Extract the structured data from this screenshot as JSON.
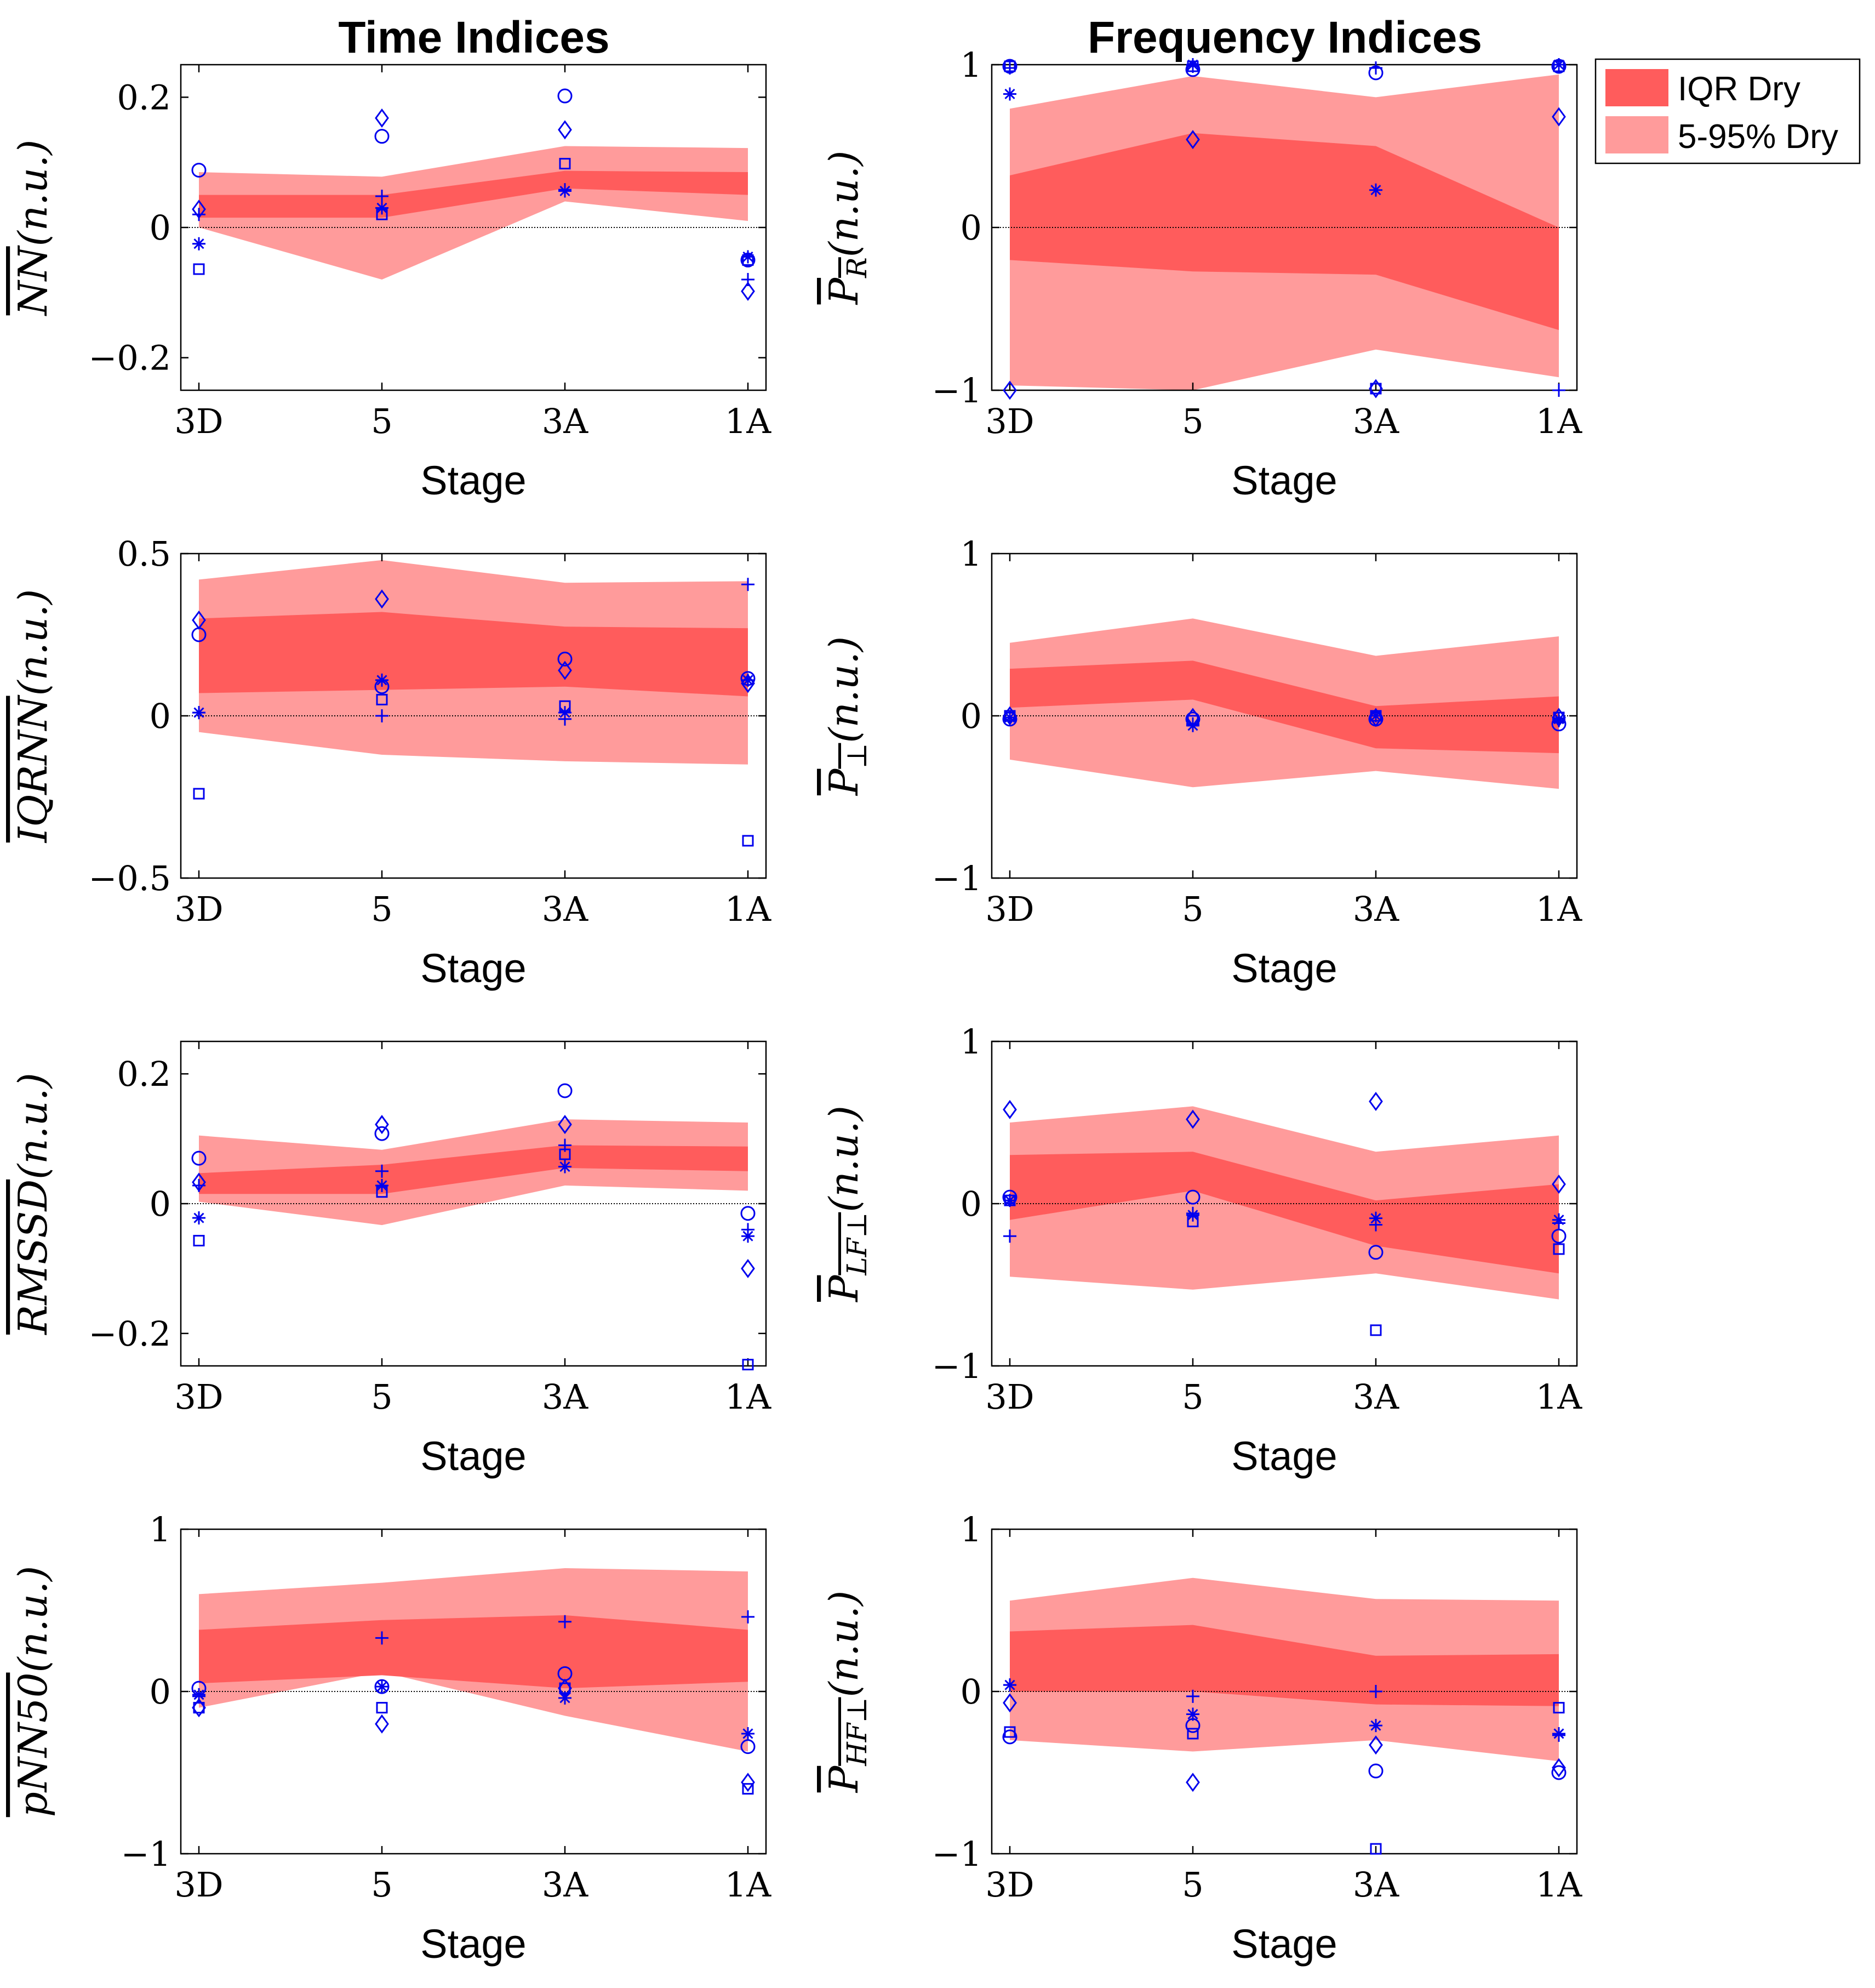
{
  "figure": {
    "col_titles": [
      "Time Indices",
      "Frequency Indices"
    ],
    "legend": [
      {
        "label": "IQR Dry",
        "color": "#ff5c5c"
      },
      {
        "label": "5-95% Dry",
        "color": "#ff9b9b"
      }
    ],
    "colors": {
      "iqr": "#ff5c5c",
      "p595": "#ff9b9b",
      "markers": "#0000ee",
      "axes": "#000000"
    },
    "marker_symbols": [
      "circle",
      "diamond",
      "square",
      "asterisk",
      "plus"
    ]
  },
  "chart_data": [
    {
      "type": "area",
      "title": "Time Indices",
      "ylabel": "NN",
      "ylabel_suffix": "(n.u.)",
      "xlabel": "Stage",
      "categories": [
        "3D",
        "5",
        "3A",
        "1A"
      ],
      "ylim": [
        -0.25,
        0.25
      ],
      "yticks": [
        -0.2,
        0,
        0.2
      ],
      "ytick_labels": [
        "−0.2",
        "0",
        "0.2"
      ],
      "band_595": {
        "lower": [
          0.0,
          -0.08,
          0.04,
          0.01
        ],
        "upper": [
          0.085,
          0.078,
          0.125,
          0.122
        ]
      },
      "band_iqr": {
        "lower": [
          0.015,
          0.015,
          0.06,
          0.05
        ],
        "upper": [
          0.05,
          0.05,
          0.087,
          0.085
        ]
      },
      "markers": {
        "circle": [
          0.088,
          0.14,
          0.202,
          -0.05
        ],
        "diamond": [
          0.028,
          0.168,
          0.15,
          -0.098
        ],
        "square": [
          -0.064,
          0.02,
          0.098,
          -0.05
        ],
        "asterisk": [
          -0.025,
          0.03,
          0.056,
          -0.045
        ],
        "plus": [
          0.02,
          0.048,
          0.058,
          -0.08
        ]
      }
    },
    {
      "type": "area",
      "title": "Frequency Indices",
      "ylabel": "P_R",
      "ylabel_suffix": "(n.u.)",
      "xlabel": "Stage",
      "categories": [
        "3D",
        "5",
        "3A",
        "1A"
      ],
      "ylim": [
        -1,
        1
      ],
      "yticks": [
        -1,
        0,
        1
      ],
      "ytick_labels": [
        "−1",
        "0",
        "1"
      ],
      "band_595": {
        "lower": [
          -0.97,
          -1.0,
          -0.75,
          -0.92
        ],
        "upper": [
          0.73,
          0.93,
          0.8,
          0.94
        ]
      },
      "band_iqr": {
        "lower": [
          -0.2,
          -0.27,
          -0.29,
          -0.63
        ],
        "upper": [
          0.32,
          0.58,
          0.5,
          0.0
        ]
      },
      "markers": {
        "circle": [
          0.99,
          0.97,
          0.95,
          0.99
        ],
        "diamond": [
          -1.0,
          0.54,
          -0.99,
          0.68
        ],
        "square": [
          0.99,
          0.99,
          -0.99,
          0.99
        ],
        "asterisk": [
          0.82,
          1.0,
          0.23,
          1.0
        ],
        "plus": [
          0.98,
          0.99,
          0.98,
          -1.0
        ]
      }
    },
    {
      "type": "area",
      "ylabel": "IQRNN",
      "ylabel_suffix": "(n.u.)",
      "xlabel": "Stage",
      "categories": [
        "3D",
        "5",
        "3A",
        "1A"
      ],
      "ylim": [
        -0.5,
        0.5
      ],
      "yticks": [
        -0.5,
        0,
        0.5
      ],
      "ytick_labels": [
        "−0.5",
        "0",
        "0.5"
      ],
      "band_595": {
        "lower": [
          -0.05,
          -0.12,
          -0.14,
          -0.15
        ],
        "upper": [
          0.42,
          0.48,
          0.41,
          0.415
        ]
      },
      "band_iqr": {
        "lower": [
          0.07,
          0.08,
          0.09,
          0.06
        ],
        "upper": [
          0.3,
          0.32,
          0.275,
          0.27
        ]
      },
      "markers": {
        "circle": [
          0.25,
          0.09,
          0.175,
          0.115
        ],
        "diamond": [
          0.295,
          0.36,
          0.14,
          0.1
        ],
        "square": [
          -0.24,
          0.05,
          0.03,
          -0.385
        ],
        "asterisk": [
          0.01,
          0.11,
          0.01,
          0.11
        ],
        "plus": [
          0.01,
          0.0,
          -0.01,
          0.405
        ]
      }
    },
    {
      "type": "area",
      "ylabel": "P_⊥",
      "ylabel_suffix": "(n.u.)",
      "xlabel": "Stage",
      "categories": [
        "3D",
        "5",
        "3A",
        "1A"
      ],
      "ylim": [
        -1,
        1
      ],
      "yticks": [
        -1,
        0,
        1
      ],
      "ytick_labels": [
        "−1",
        "0",
        "1"
      ],
      "band_595": {
        "lower": [
          -0.27,
          -0.44,
          -0.34,
          -0.45
        ],
        "upper": [
          0.45,
          0.6,
          0.37,
          0.49
        ]
      },
      "band_iqr": {
        "lower": [
          0.05,
          0.1,
          -0.2,
          -0.23
        ],
        "upper": [
          0.29,
          0.34,
          0.06,
          0.12
        ]
      },
      "markers": {
        "circle": [
          -0.02,
          -0.02,
          -0.02,
          -0.05
        ],
        "diamond": [
          0.0,
          -0.01,
          -0.01,
          -0.01
        ],
        "square": [
          0.0,
          -0.03,
          0.0,
          -0.01
        ],
        "asterisk": [
          -0.01,
          -0.06,
          0.0,
          -0.02
        ],
        "plus": [
          -0.01,
          -0.05,
          0.0,
          -0.03
        ]
      }
    },
    {
      "type": "area",
      "ylabel": "RMSSD",
      "ylabel_suffix": "(n.u.)",
      "xlabel": "Stage",
      "categories": [
        "3D",
        "5",
        "3A",
        "1A"
      ],
      "ylim": [
        -0.25,
        0.25
      ],
      "yticks": [
        -0.2,
        0,
        0.2
      ],
      "ytick_labels": [
        "−0.2",
        "0",
        "0.2"
      ],
      "band_595": {
        "lower": [
          0.003,
          -0.033,
          0.028,
          0.02
        ],
        "upper": [
          0.105,
          0.083,
          0.13,
          0.125
        ]
      },
      "band_iqr": {
        "lower": [
          0.015,
          0.015,
          0.055,
          0.05
        ],
        "upper": [
          0.047,
          0.06,
          0.09,
          0.088
        ]
      },
      "markers": {
        "circle": [
          0.07,
          0.108,
          0.174,
          -0.015
        ],
        "diamond": [
          0.033,
          0.122,
          0.122,
          -0.1
        ],
        "square": [
          -0.057,
          0.018,
          0.076,
          -0.248
        ],
        "asterisk": [
          -0.022,
          0.028,
          0.057,
          -0.05
        ],
        "plus": [
          0.028,
          0.05,
          0.09,
          -0.04
        ]
      }
    },
    {
      "type": "area",
      "ylabel": "P_LF⊥",
      "ylabel_suffix": "(n.u.)",
      "xlabel": "Stage",
      "categories": [
        "3D",
        "5",
        "3A",
        "1A"
      ],
      "ylim": [
        -1,
        1
      ],
      "yticks": [
        -1,
        0,
        1
      ],
      "ytick_labels": [
        "−1",
        "0",
        "1"
      ],
      "band_595": {
        "lower": [
          -0.45,
          -0.53,
          -0.43,
          -0.59
        ],
        "upper": [
          0.5,
          0.6,
          0.32,
          0.42
        ]
      },
      "band_iqr": {
        "lower": [
          -0.1,
          0.08,
          -0.26,
          -0.43
        ],
        "upper": [
          0.3,
          0.32,
          0.02,
          0.12
        ]
      },
      "markers": {
        "circle": [
          0.04,
          0.04,
          -0.3,
          -0.2
        ],
        "diamond": [
          0.58,
          0.52,
          0.63,
          0.12
        ],
        "square": [
          0.02,
          -0.11,
          -0.78,
          -0.28
        ],
        "asterisk": [
          0.02,
          -0.07,
          -0.09,
          -0.1
        ],
        "plus": [
          -0.2,
          -0.06,
          -0.13,
          -0.12
        ]
      }
    },
    {
      "type": "area",
      "ylabel": "pNN50",
      "ylabel_suffix": "(n.u.)",
      "xlabel": "Stage",
      "categories": [
        "3D",
        "5",
        "3A",
        "1A"
      ],
      "ylim": [
        -1,
        1
      ],
      "yticks": [
        -1,
        0,
        1
      ],
      "ytick_labels": [
        "−1",
        "0",
        "1"
      ],
      "band_595": {
        "lower": [
          -0.1,
          0.12,
          -0.15,
          -0.37
        ],
        "upper": [
          0.6,
          0.67,
          0.76,
          0.74
        ]
      },
      "band_iqr": {
        "lower": [
          0.05,
          0.1,
          0.02,
          0.06
        ],
        "upper": [
          0.38,
          0.44,
          0.47,
          0.38
        ]
      },
      "markers": {
        "circle": [
          0.02,
          0.03,
          0.11,
          -0.34
        ],
        "diamond": [
          -0.1,
          -0.2,
          0.02,
          -0.56
        ],
        "square": [
          -0.1,
          -0.1,
          0.02,
          -0.6
        ],
        "asterisk": [
          -0.02,
          0.03,
          -0.04,
          -0.26
        ],
        "plus": [
          -0.03,
          0.33,
          0.43,
          0.46
        ]
      }
    },
    {
      "type": "area",
      "ylabel": "P_HF⊥",
      "ylabel_suffix": "(n.u.)",
      "xlabel": "Stage",
      "categories": [
        "3D",
        "5",
        "3A",
        "1A"
      ],
      "ylim": [
        -1,
        1
      ],
      "yticks": [
        -1,
        0,
        1
      ],
      "ytick_labels": [
        "−1",
        "0",
        "1"
      ],
      "band_595": {
        "lower": [
          -0.3,
          -0.37,
          -0.3,
          -0.43
        ],
        "upper": [
          0.56,
          0.7,
          0.57,
          0.56
        ]
      },
      "band_iqr": {
        "lower": [
          0.0,
          0.0,
          -0.08,
          -0.09
        ],
        "upper": [
          0.37,
          0.41,
          0.22,
          0.23
        ]
      },
      "markers": {
        "circle": [
          -0.28,
          -0.21,
          -0.49,
          -0.5
        ],
        "diamond": [
          -0.07,
          -0.56,
          -0.33,
          -0.47
        ],
        "square": [
          -0.25,
          -0.26,
          -0.97,
          -0.1
        ],
        "asterisk": [
          0.04,
          -0.14,
          -0.21,
          -0.26
        ],
        "plus": [
          0.04,
          -0.03,
          0.0,
          -0.27
        ]
      }
    }
  ]
}
